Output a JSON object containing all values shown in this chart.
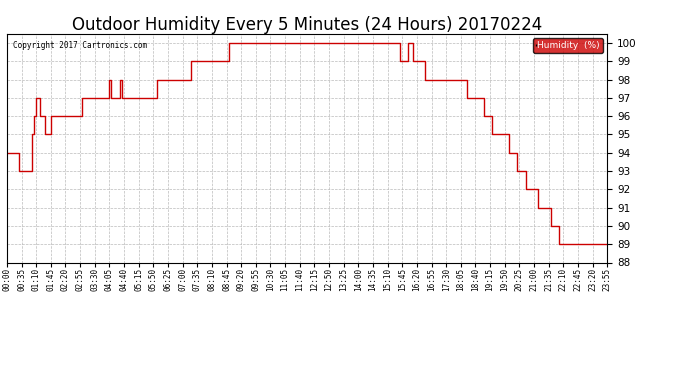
{
  "title": "Outdoor Humidity Every 5 Minutes (24 Hours) 20170224",
  "copyright_text": "Copyright 2017 Cartronics.com",
  "ylim": [
    88.0,
    100.5
  ],
  "yticks": [
    88.0,
    89.0,
    90.0,
    91.0,
    92.0,
    93.0,
    94.0,
    95.0,
    96.0,
    97.0,
    98.0,
    99.0,
    100.0
  ],
  "line_color": "#cc0000",
  "background_color": "#ffffff",
  "grid_color": "#bbbbbb",
  "title_fontsize": 12,
  "legend_bg": "#cc0000",
  "legend_text_color": "#ffffff",
  "tick_every": 7,
  "humidity_values": [
    94.0,
    94.0,
    94.0,
    94.0,
    94.0,
    94.0,
    93.0,
    93.0,
    93.0,
    93.0,
    93.0,
    93.0,
    95.0,
    96.0,
    97.0,
    97.0,
    96.0,
    96.0,
    95.0,
    95.0,
    95.0,
    96.0,
    96.0,
    96.0,
    96.0,
    96.0,
    96.0,
    96.0,
    96.0,
    96.0,
    96.0,
    96.0,
    96.0,
    96.0,
    96.0,
    96.0,
    97.0,
    97.0,
    97.0,
    97.0,
    97.0,
    97.0,
    97.0,
    97.0,
    97.0,
    97.0,
    97.0,
    97.0,
    97.0,
    98.0,
    97.0,
    97.0,
    97.0,
    97.0,
    98.0,
    97.0,
    97.0,
    97.0,
    97.0,
    97.0,
    97.0,
    97.0,
    97.0,
    97.0,
    97.0,
    97.0,
    97.0,
    97.0,
    97.0,
    97.0,
    97.0,
    97.0,
    98.0,
    98.0,
    98.0,
    98.0,
    98.0,
    98.0,
    98.0,
    98.0,
    98.0,
    98.0,
    98.0,
    98.0,
    98.0,
    98.0,
    98.0,
    98.0,
    99.0,
    99.0,
    99.0,
    99.0,
    99.0,
    99.0,
    99.0,
    99.0,
    99.0,
    99.0,
    99.0,
    99.0,
    99.0,
    99.0,
    99.0,
    99.0,
    99.0,
    99.0,
    100.0,
    100.0,
    100.0,
    100.0,
    100.0,
    100.0,
    100.0,
    100.0,
    100.0,
    100.0,
    100.0,
    100.0,
    100.0,
    100.0,
    100.0,
    100.0,
    100.0,
    100.0,
    100.0,
    100.0,
    100.0,
    100.0,
    100.0,
    100.0,
    100.0,
    100.0,
    100.0,
    100.0,
    100.0,
    100.0,
    100.0,
    100.0,
    100.0,
    100.0,
    100.0,
    100.0,
    100.0,
    100.0,
    100.0,
    100.0,
    100.0,
    100.0,
    100.0,
    100.0,
    100.0,
    100.0,
    100.0,
    100.0,
    100.0,
    100.0,
    100.0,
    100.0,
    100.0,
    100.0,
    100.0,
    100.0,
    100.0,
    100.0,
    100.0,
    100.0,
    100.0,
    100.0,
    100.0,
    100.0,
    100.0,
    100.0,
    100.0,
    100.0,
    100.0,
    100.0,
    100.0,
    100.0,
    100.0,
    100.0,
    100.0,
    100.0,
    100.0,
    100.0,
    100.0,
    100.0,
    100.0,
    100.0,
    99.0,
    99.0,
    99.0,
    99.0,
    100.0,
    100.0,
    99.0,
    99.0,
    99.0,
    99.0,
    99.0,
    99.0,
    98.0,
    98.0,
    98.0,
    98.0,
    98.0,
    98.0,
    98.0,
    98.0,
    98.0,
    98.0,
    98.0,
    98.0,
    98.0,
    98.0,
    98.0,
    98.0,
    98.0,
    98.0,
    98.0,
    98.0,
    97.0,
    97.0,
    97.0,
    97.0,
    97.0,
    97.0,
    97.0,
    97.0,
    96.0,
    96.0,
    96.0,
    96.0,
    95.0,
    95.0,
    95.0,
    95.0,
    95.0,
    95.0,
    95.0,
    95.0,
    94.0,
    94.0,
    94.0,
    94.0,
    93.0,
    93.0,
    93.0,
    93.0,
    92.0,
    92.0,
    92.0,
    92.0,
    92.0,
    92.0,
    91.0,
    91.0,
    91.0,
    91.0,
    91.0,
    91.0,
    90.0,
    90.0,
    90.0,
    90.0,
    89.0,
    89.0,
    89.0,
    89.0,
    89.0,
    89.0,
    89.0,
    89.0,
    89.0,
    89.0,
    89.0,
    89.0,
    89.0,
    89.0,
    89.0,
    89.0,
    89.0,
    89.0,
    89.0,
    89.0,
    89.0,
    89.0,
    89.0,
    89.0
  ]
}
